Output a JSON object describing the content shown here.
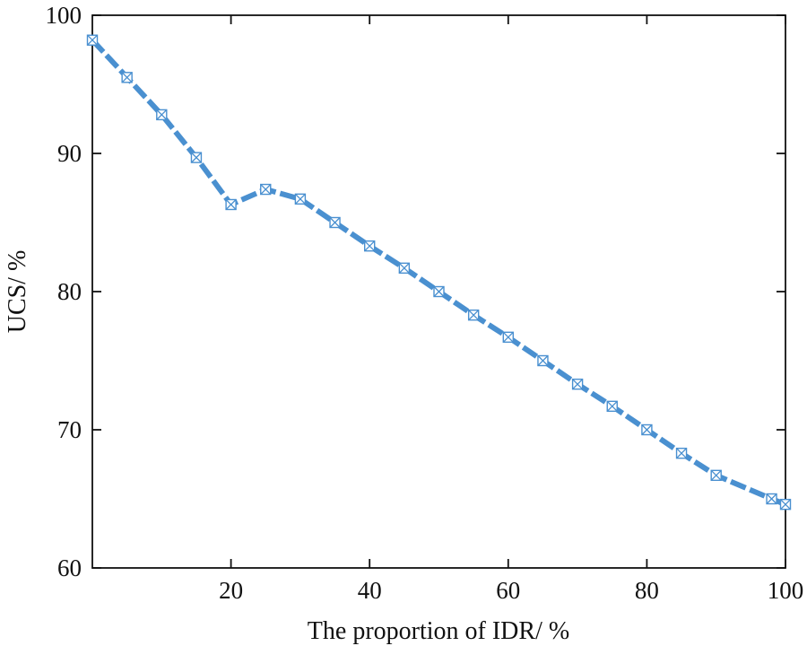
{
  "chart_data": {
    "type": "line",
    "title": "",
    "xlabel": "The proportion of IDR/ %",
    "ylabel": "UCS/ %",
    "xlim": [
      0,
      100
    ],
    "ylim": [
      60,
      100
    ],
    "x_ticks": [
      20,
      40,
      60,
      80,
      100
    ],
    "y_ticks": [
      60,
      70,
      80,
      90,
      100
    ],
    "grid": false,
    "series": [
      {
        "x": [
          0,
          5,
          10,
          15,
          20,
          25,
          30,
          35,
          40,
          45,
          50,
          55,
          60,
          65,
          70,
          75,
          80,
          85,
          90,
          98,
          100
        ],
        "y": [
          98.2,
          95.5,
          92.8,
          89.7,
          86.3,
          87.4,
          86.7,
          85.0,
          83.3,
          81.7,
          80.0,
          78.3,
          76.7,
          75.0,
          73.3,
          71.7,
          70.0,
          68.3,
          66.7,
          65.0,
          64.6
        ],
        "color": "#4a90d0",
        "marker": "boxed-x"
      }
    ]
  }
}
